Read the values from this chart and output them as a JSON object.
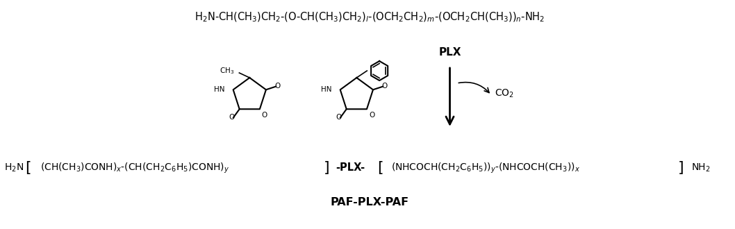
{
  "background_color": "#ffffff",
  "top_formula": "H₂N-CH(CH₃)CH₂-(O-CH(CH₃)CH₂)ₗ-(OCH₂CH₂)ₘ-(OCH₂CH(CH₃))ₙ-NH₂",
  "plx_label": "PLX",
  "co2_label": "CO₂",
  "bottom_formula_left": "H₂N",
  "bottom_formula_mid1": "(CH(CH₃)CONH)ₓ-(CH(CH₂C₆H₅)CONH)ʸ",
  "bottom_formula_mid2": "-PLX-",
  "bottom_formula_mid3": "(NHCOCH(CH₂C₆H₅))ʸ-(NHCOCH(CH₃))ₓ",
  "bottom_formula_right": "NH₂",
  "paf_plx_paf_label": "PAF-PLX-PAF",
  "figsize": [
    10.58,
    3.3
  ],
  "dpi": 100
}
